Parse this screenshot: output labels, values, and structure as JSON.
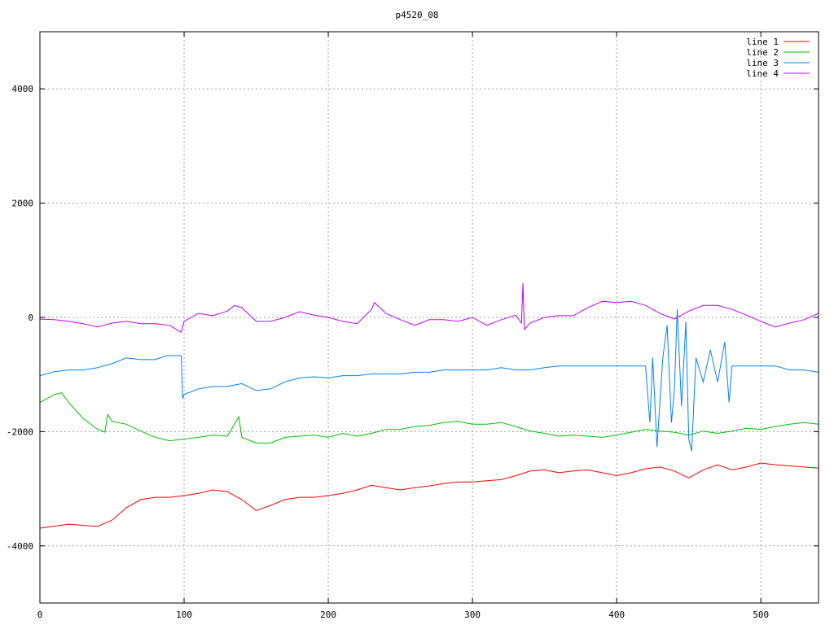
{
  "chart_data": {
    "type": "line",
    "title": "p4520_08",
    "xlabel": "",
    "ylabel": "",
    "xlim": [
      0,
      540
    ],
    "ylim": [
      -5000,
      5000
    ],
    "xticks": [
      0,
      100,
      200,
      300,
      400,
      500
    ],
    "yticks": [
      -4000,
      -2000,
      0,
      2000,
      4000
    ],
    "grid": true,
    "legend_position": "top-right",
    "series": [
      {
        "name": "line 1",
        "color": "#ff0000",
        "x": [
          0,
          20,
          40,
          50,
          60,
          70,
          80,
          90,
          100,
          110,
          120,
          130,
          140,
          150,
          160,
          170,
          180,
          190,
          200,
          210,
          220,
          230,
          240,
          250,
          260,
          270,
          280,
          290,
          300,
          310,
          320,
          330,
          340,
          350,
          360,
          370,
          380,
          390,
          400,
          410,
          420,
          430,
          440,
          450,
          460,
          470,
          480,
          490,
          500,
          510,
          520,
          530,
          540
        ],
        "y": [
          -3690,
          -3620,
          -3660,
          -3550,
          -3330,
          -3190,
          -3150,
          -3150,
          -3120,
          -3080,
          -3020,
          -3050,
          -3190,
          -3380,
          -3290,
          -3190,
          -3150,
          -3150,
          -3120,
          -3080,
          -3020,
          -2940,
          -2980,
          -3020,
          -2980,
          -2950,
          -2910,
          -2880,
          -2880,
          -2860,
          -2840,
          -2770,
          -2690,
          -2670,
          -2720,
          -2690,
          -2670,
          -2720,
          -2770,
          -2720,
          -2650,
          -2620,
          -2690,
          -2810,
          -2670,
          -2580,
          -2670,
          -2620,
          -2550,
          -2580,
          -2600,
          -2620,
          -2640
        ]
      },
      {
        "name": "line 2",
        "color": "#00c000",
        "x": [
          0,
          10,
          15,
          20,
          30,
          40,
          45,
          47,
          50,
          60,
          70,
          80,
          90,
          100,
          110,
          120,
          130,
          138,
          140,
          150,
          160,
          170,
          180,
          190,
          200,
          210,
          220,
          230,
          240,
          250,
          260,
          270,
          280,
          290,
          300,
          310,
          320,
          330,
          340,
          350,
          360,
          370,
          380,
          390,
          400,
          410,
          420,
          430,
          440,
          450,
          460,
          470,
          480,
          490,
          500,
          510,
          520,
          530,
          540
        ],
        "y": [
          -1490,
          -1350,
          -1320,
          -1490,
          -1770,
          -1960,
          -2010,
          -1700,
          -1820,
          -1870,
          -1990,
          -2100,
          -2160,
          -2130,
          -2100,
          -2060,
          -2080,
          -1740,
          -2100,
          -2200,
          -2200,
          -2100,
          -2080,
          -2060,
          -2100,
          -2030,
          -2080,
          -2030,
          -1960,
          -1960,
          -1910,
          -1890,
          -1840,
          -1820,
          -1870,
          -1870,
          -1840,
          -1910,
          -1990,
          -2030,
          -2080,
          -2060,
          -2080,
          -2100,
          -2060,
          -2010,
          -1960,
          -1990,
          -2010,
          -2060,
          -1990,
          -2030,
          -1990,
          -1940,
          -1960,
          -1910,
          -1870,
          -1840,
          -1870
        ]
      },
      {
        "name": "line 3",
        "color": "#0080ff",
        "x": [
          0,
          10,
          20,
          30,
          40,
          50,
          60,
          70,
          80,
          88,
          98,
          99,
          100,
          110,
          120,
          130,
          140,
          150,
          160,
          170,
          180,
          190,
          200,
          210,
          220,
          230,
          240,
          250,
          260,
          270,
          280,
          290,
          300,
          310,
          320,
          330,
          340,
          350,
          360,
          370,
          380,
          390,
          400,
          410,
          420,
          423,
          425,
          428,
          432,
          435,
          438,
          440,
          442,
          445,
          448,
          450,
          452,
          455,
          460,
          465,
          470,
          475,
          478,
          480,
          490,
          500,
          510,
          520,
          530,
          540
        ],
        "y": [
          -1020,
          -950,
          -920,
          -920,
          -880,
          -810,
          -710,
          -740,
          -740,
          -670,
          -670,
          -1420,
          -1350,
          -1250,
          -1210,
          -1210,
          -1160,
          -1280,
          -1250,
          -1130,
          -1060,
          -1040,
          -1060,
          -1020,
          -1020,
          -990,
          -990,
          -990,
          -960,
          -960,
          -920,
          -920,
          -920,
          -920,
          -880,
          -920,
          -920,
          -880,
          -850,
          -850,
          -850,
          -850,
          -850,
          -850,
          -850,
          -1840,
          -710,
          -2270,
          -710,
          -140,
          -1840,
          -1280,
          140,
          -1560,
          -70,
          -2130,
          -2340,
          -710,
          -1130,
          -570,
          -1130,
          -430,
          -1490,
          -850,
          -850,
          -850,
          -850,
          -920,
          -920,
          -960
        ]
      },
      {
        "name": "line 4",
        "color": "#c000ff",
        "x": [
          0,
          10,
          20,
          30,
          40,
          50,
          60,
          70,
          80,
          90,
          98,
          100,
          110,
          120,
          130,
          135,
          140,
          150,
          160,
          170,
          180,
          190,
          200,
          210,
          220,
          230,
          232,
          240,
          250,
          260,
          270,
          280,
          290,
          300,
          310,
          320,
          330,
          334,
          335,
          336,
          340,
          350,
          360,
          370,
          380,
          390,
          400,
          410,
          420,
          430,
          440,
          450,
          460,
          470,
          480,
          490,
          500,
          510,
          520,
          530,
          540
        ],
        "y": [
          -30,
          -40,
          -70,
          -110,
          -170,
          -100,
          -70,
          -110,
          -110,
          -140,
          -260,
          -70,
          70,
          30,
          110,
          210,
          170,
          -70,
          -70,
          0,
          100,
          40,
          0,
          -70,
          -110,
          140,
          260,
          70,
          -40,
          -140,
          -40,
          -40,
          -70,
          0,
          -140,
          -40,
          40,
          -100,
          600,
          -210,
          -100,
          0,
          30,
          30,
          170,
          280,
          260,
          280,
          210,
          70,
          -30,
          110,
          210,
          210,
          140,
          40,
          -70,
          -170,
          -100,
          -40,
          70
        ]
      }
    ]
  }
}
